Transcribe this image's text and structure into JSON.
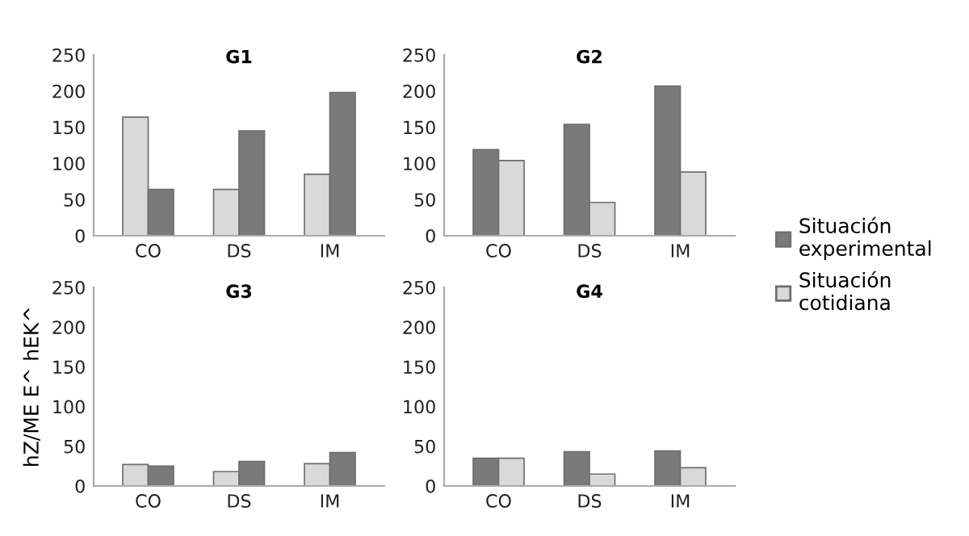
{
  "chart_data": [
    {
      "type": "bar",
      "title": "G1",
      "categories": [
        "CO",
        "DS",
        "IM"
      ],
      "ylim": [
        0,
        250
      ],
      "yticks": [
        0,
        50,
        100,
        150,
        200,
        250
      ],
      "grid": false,
      "series": [
        {
          "color": "#d9d9d9",
          "values": [
            164,
            64,
            85
          ]
        },
        {
          "color": "#7a7a7a",
          "values": [
            64,
            145,
            198
          ]
        }
      ]
    },
    {
      "type": "bar",
      "title": "G2",
      "categories": [
        "CO",
        "DS",
        "IM"
      ],
      "ylim": [
        0,
        250
      ],
      "yticks": [
        0,
        50,
        100,
        150,
        200,
        250
      ],
      "grid": false,
      "legend": "right",
      "series": [
        {
          "name": "Situación experimental",
          "color": "#7a7a7a",
          "values": [
            119,
            154,
            207
          ]
        },
        {
          "name": "Situación cotidiana",
          "color": "#d9d9d9",
          "values": [
            104,
            46,
            88
          ]
        }
      ]
    },
    {
      "type": "bar",
      "title": "G3",
      "ylabel": "hZ/ME E^ hEK^",
      "categories": [
        "CO",
        "DS",
        "IM"
      ],
      "ylim": [
        0,
        250
      ],
      "yticks": [
        0,
        50,
        100,
        150,
        200,
        250
      ],
      "grid": false,
      "series": [
        {
          "color": "#d9d9d9",
          "values": [
            27,
            18,
            28
          ]
        },
        {
          "color": "#7a7a7a",
          "values": [
            25,
            31,
            42
          ]
        }
      ]
    },
    {
      "type": "bar",
      "title": "G4",
      "categories": [
        "CO",
        "DS",
        "IM"
      ],
      "ylim": [
        0,
        250
      ],
      "yticks": [
        0,
        50,
        100,
        150,
        200,
        250
      ],
      "grid": false,
      "series": [
        {
          "color": "#7a7a7a",
          "values": [
            35,
            43,
            44
          ]
        },
        {
          "color": "#d9d9d9",
          "values": [
            35,
            15,
            23
          ]
        }
      ]
    }
  ]
}
